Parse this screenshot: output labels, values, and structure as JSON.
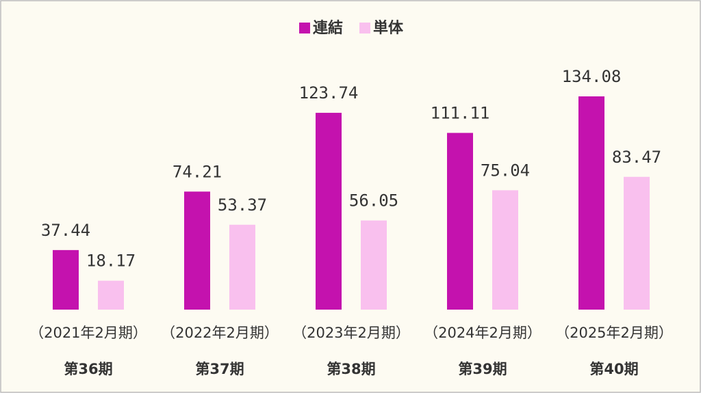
{
  "chart_data": {
    "type": "bar",
    "categories": [
      "（2021年2月期）",
      "（2022年2月期）",
      "（2023年2月期）",
      "（2024年2月期）",
      "（2025年2月期）"
    ],
    "sub_categories": [
      "第36期",
      "第37期",
      "第38期",
      "第39期",
      "第40期"
    ],
    "series": [
      {
        "name": "連結",
        "color": "#c412ae",
        "values": [
          37.44,
          74.21,
          123.74,
          111.11,
          134.08
        ]
      },
      {
        "name": "単体",
        "color": "#f9c0ee",
        "values": [
          18.17,
          53.37,
          56.05,
          75.04,
          83.47
        ]
      }
    ],
    "legend": "top"
  }
}
